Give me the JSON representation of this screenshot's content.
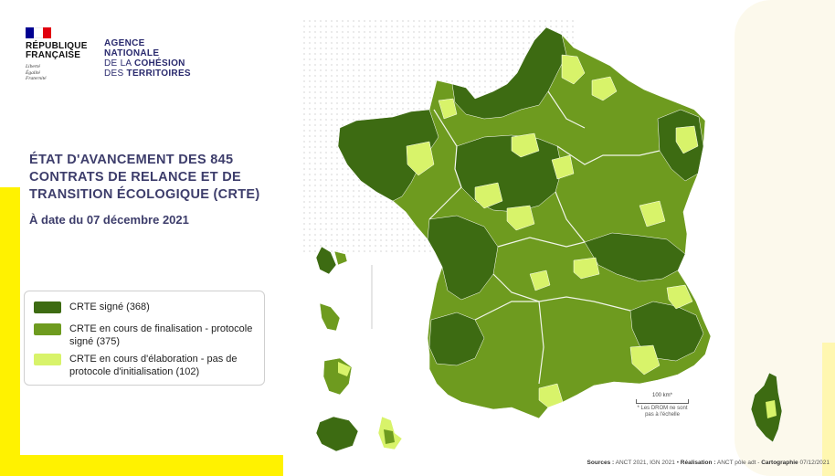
{
  "header": {
    "gov_name_line1": "RÉPUBLIQUE",
    "gov_name_line2": "FRANÇAISE",
    "motto_line1": "Liberté",
    "motto_line2": "Égalité",
    "motto_line3": "Fraternité",
    "agency_line1": "AGENCE",
    "agency_line2": "NATIONALE",
    "agency_line3_prefix": "DE LA ",
    "agency_line3_bold": "COHÉSION",
    "agency_line4_prefix": "DES ",
    "agency_line4_bold": "TERRITOIRES"
  },
  "title": {
    "line1": "ÉTAT D'AVANCEMENT DES 845",
    "line2": "CONTRATS DE RELANCE ET DE",
    "line3": "TRANSITION ÉCOLOGIQUE (CRTE)",
    "date": "À date du 07 décembre 2021"
  },
  "legend": [
    {
      "label": "CRTE signé (368)",
      "color": "#3d6b12"
    },
    {
      "label": "CRTE en cours de finalisation - protocole signé (375)",
      "color": "#6e9b1f"
    },
    {
      "label": "CRTE en cours d'élaboration - pas de protocole d'initialisation (102)",
      "color": "#d8f36a"
    }
  ],
  "map": {
    "colors": {
      "signed": "#3d6b12",
      "finalising": "#6e9b1f",
      "elaborating": "#d8f36a",
      "border": "#ffffff"
    }
  },
  "scale": {
    "label": "100 km*",
    "note_line1": "* Les DROM ne sont",
    "note_line2": "pas à l'échelle"
  },
  "sources": {
    "label1": "Sources :",
    "text1": " ANCT 2021, IGN 2021 • ",
    "label2": "Réalisation :",
    "text2": " ANCT pôle adt - ",
    "label3": "Cartographie",
    "text3": " 07/12/2021"
  },
  "colors": {
    "flag_blue": "#000091",
    "flag_red": "#e1000f",
    "title": "#3d3d6b",
    "accent_yellow": "#fff200"
  }
}
